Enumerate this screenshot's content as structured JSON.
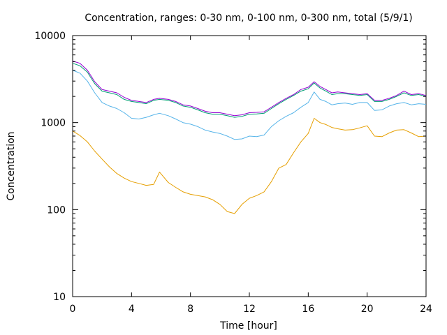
{
  "chart_data": {
    "type": "line",
    "title": "Concentration, ranges: 0-30 nm, 0-100 nm, 0-300 nm, total (5/9/1)",
    "xlabel": "Time [hour]",
    "ylabel": "Concentration",
    "xlim": [
      0,
      24
    ],
    "ylim": [
      10,
      10000
    ],
    "yscale": "log",
    "grid": false,
    "legend": "none",
    "x_ticks": [
      "0",
      "4",
      "8",
      "12",
      "16",
      "20",
      "24"
    ],
    "y_ticks": [
      "10",
      "100",
      "1000",
      "10000"
    ],
    "x": [
      0,
      0.5,
      1,
      1.5,
      2,
      2.5,
      3,
      3.5,
      4,
      4.5,
      5,
      5.5,
      5.9,
      6.5,
      7,
      7.5,
      8,
      8.5,
      9,
      9.5,
      10,
      10.5,
      11,
      11.5,
      12,
      12.5,
      13,
      13.5,
      14,
      14.5,
      15,
      15.5,
      16,
      16.4,
      16.8,
      17.2,
      17.6,
      18,
      18.5,
      19,
      19.5,
      20,
      20.5,
      21,
      21.5,
      22,
      22.5,
      23,
      23.5,
      24
    ],
    "series": [
      {
        "color": "#e69f00",
        "values": [
          800,
          710,
          600,
          470,
          380,
          310,
          260,
          230,
          210,
          200,
          190,
          195,
          270,
          205,
          180,
          160,
          150,
          145,
          140,
          130,
          115,
          95,
          90,
          115,
          135,
          145,
          160,
          210,
          300,
          330,
          450,
          600,
          750,
          1120,
          1000,
          950,
          880,
          850,
          820,
          830,
          870,
          920,
          700,
          690,
          760,
          820,
          830,
          760,
          690,
          700
        ]
      },
      {
        "color": "#56b4e9",
        "values": [
          4000,
          3700,
          3000,
          2200,
          1700,
          1550,
          1450,
          1300,
          1120,
          1100,
          1150,
          1230,
          1280,
          1200,
          1100,
          1000,
          960,
          900,
          820,
          780,
          750,
          700,
          640,
          650,
          700,
          690,
          720,
          900,
          1050,
          1180,
          1300,
          1500,
          1700,
          2250,
          1850,
          1750,
          1600,
          1650,
          1680,
          1620,
          1700,
          1700,
          1380,
          1400,
          1550,
          1650,
          1700,
          1600,
          1650,
          1620
        ]
      },
      {
        "color": "#009e73",
        "values": [
          4800,
          4500,
          3800,
          2800,
          2300,
          2200,
          2100,
          1850,
          1750,
          1700,
          1650,
          1800,
          1850,
          1800,
          1700,
          1550,
          1500,
          1400,
          1300,
          1250,
          1250,
          1200,
          1150,
          1180,
          1250,
          1260,
          1280,
          1450,
          1650,
          1850,
          2050,
          2300,
          2450,
          2850,
          2500,
          2300,
          2100,
          2150,
          2150,
          2100,
          2050,
          2100,
          1750,
          1750,
          1850,
          2000,
          2200,
          2050,
          2100,
          2000
        ]
      },
      {
        "color": "#9400d3",
        "values": [
          5100,
          4800,
          4000,
          2950,
          2400,
          2300,
          2200,
          1950,
          1800,
          1750,
          1700,
          1850,
          1900,
          1850,
          1750,
          1600,
          1550,
          1450,
          1350,
          1300,
          1300,
          1250,
          1200,
          1230,
          1300,
          1310,
          1330,
          1500,
          1700,
          1900,
          2100,
          2400,
          2550,
          2950,
          2600,
          2400,
          2200,
          2250,
          2200,
          2150,
          2100,
          2150,
          1800,
          1800,
          1900,
          2050,
          2300,
          2100,
          2150,
          2050
        ]
      }
    ]
  }
}
